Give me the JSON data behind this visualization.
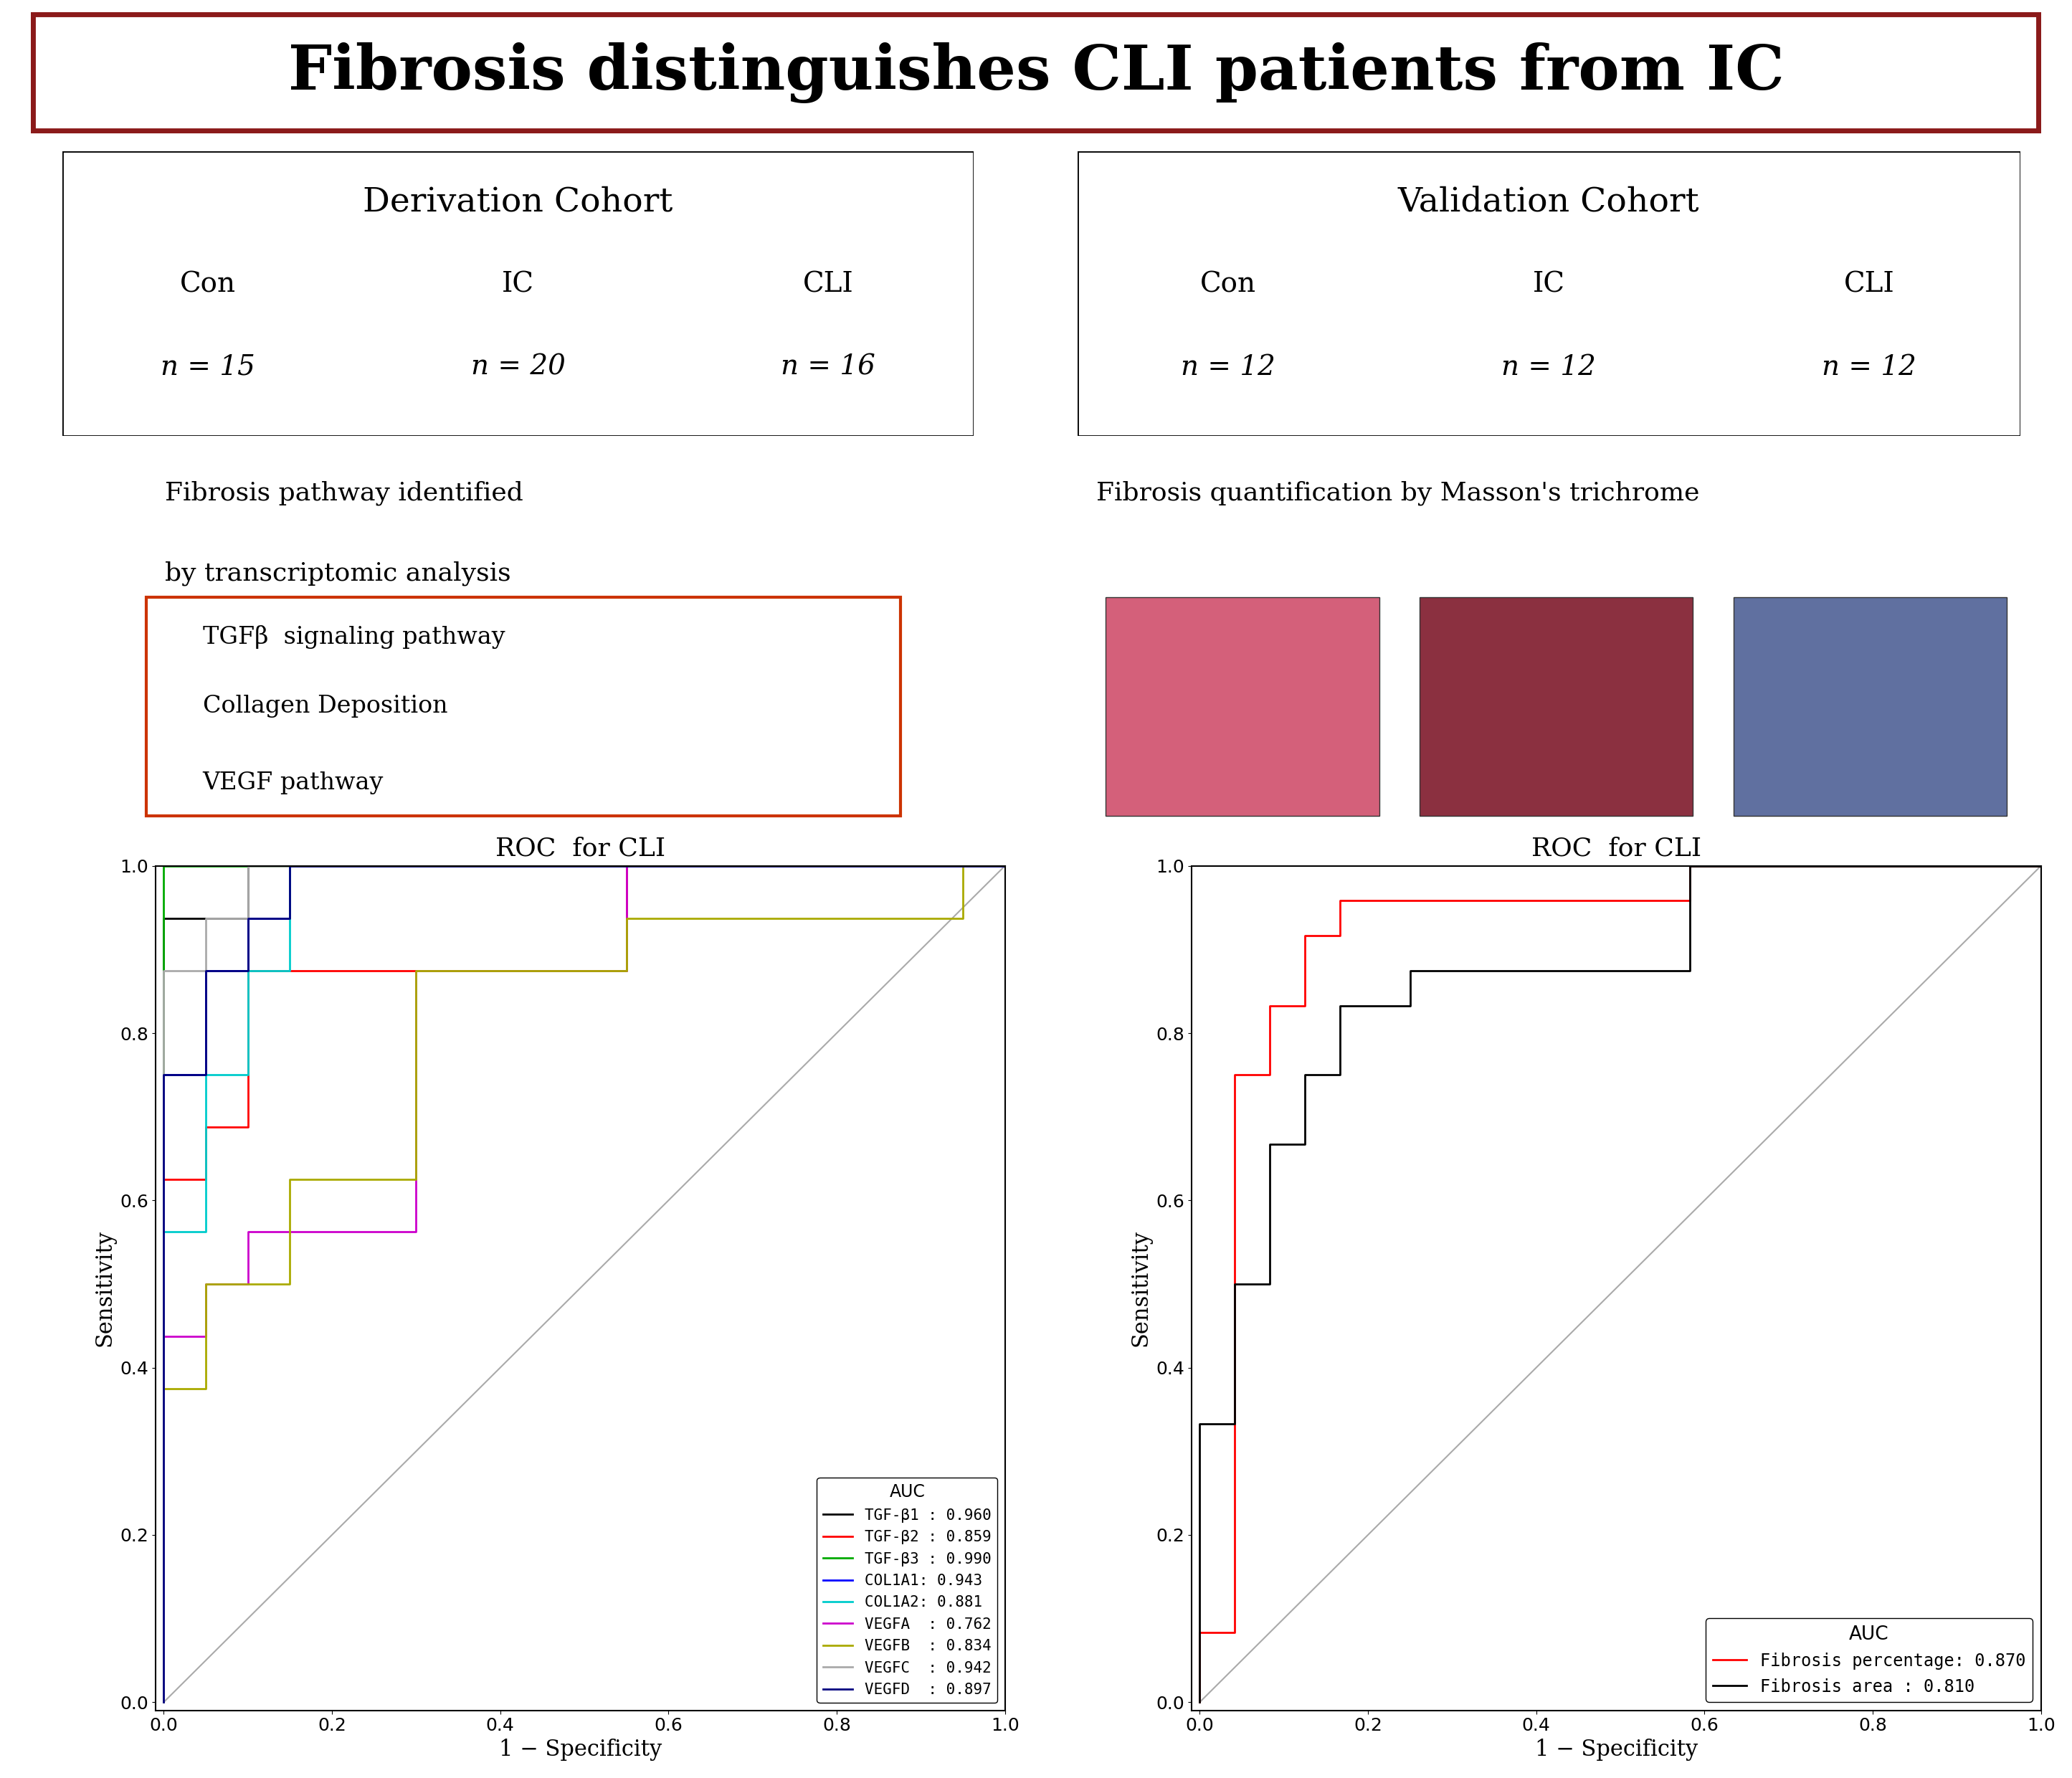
{
  "title": "Fibrosis distinguishes CLI patients from IC",
  "title_color": "#000000",
  "title_border_color": "#8B1A1A",
  "bg_color": "#ffffff",
  "deriv_cohort_title": "Derivation Cohort",
  "deriv_cohort_rows": [
    [
      "Con",
      "IC",
      "CLI"
    ],
    [
      "n = 15",
      "n = 20",
      "n = 16"
    ]
  ],
  "valid_cohort_title": "Validation Cohort",
  "valid_cohort_rows": [
    [
      "Con",
      "IC",
      "CLI"
    ],
    [
      "n = 12",
      "n = 12",
      "n = 12"
    ]
  ],
  "fibrosis_pathway_text1": "Fibrosis pathway identified",
  "fibrosis_pathway_text2": "by transcriptomic analysis",
  "fibrosis_pathway_items": [
    "TGFβ  signaling pathway",
    "Collagen Deposition",
    "VEGF pathway"
  ],
  "fibrosis_quant_text": "Fibrosis quantification by Masson's trichrome",
  "roc_left_title": "ROC  for CLI",
  "roc_right_title": "ROC  for CLI",
  "roc_left_curves": {
    "TGF-β1": {
      "color": "#000000",
      "auc": 0.96,
      "fpr": [
        0.0,
        0.0,
        0.0,
        0.05,
        0.05,
        0.1,
        0.1,
        0.15,
        0.15,
        0.35,
        0.35,
        0.55,
        0.55,
        1.0
      ],
      "tpr": [
        0.0,
        0.0,
        0.9375,
        0.9375,
        0.9375,
        0.9375,
        1.0,
        1.0,
        1.0,
        1.0,
        1.0,
        1.0,
        1.0,
        1.0
      ]
    },
    "TGF-β2": {
      "color": "#FF0000",
      "auc": 0.859,
      "fpr": [
        0.0,
        0.0,
        0.05,
        0.05,
        0.1,
        0.1,
        0.55,
        0.55,
        1.0
      ],
      "tpr": [
        0.0,
        0.625,
        0.625,
        0.6875,
        0.6875,
        0.875,
        0.875,
        1.0,
        1.0
      ]
    },
    "TGF-β3": {
      "color": "#00AA00",
      "auc": 0.99,
      "fpr": [
        0.0,
        0.0,
        0.05,
        0.05,
        0.5,
        0.5,
        1.0
      ],
      "tpr": [
        0.0,
        1.0,
        1.0,
        1.0,
        1.0,
        1.0,
        1.0
      ]
    },
    "COL1A1": {
      "color": "#0000FF",
      "auc": 0.943,
      "fpr": [
        0.0,
        0.0,
        0.05,
        0.05,
        0.1,
        0.1,
        0.15,
        0.15,
        0.5,
        0.5,
        1.0
      ],
      "tpr": [
        0.0,
        0.75,
        0.75,
        0.875,
        0.875,
        0.9375,
        0.9375,
        1.0,
        1.0,
        1.0,
        1.0
      ]
    },
    "COL1A2": {
      "color": "#00CCCC",
      "auc": 0.881,
      "fpr": [
        0.0,
        0.0,
        0.05,
        0.05,
        0.1,
        0.1,
        0.15,
        0.15,
        0.5,
        0.5,
        1.0
      ],
      "tpr": [
        0.0,
        0.5625,
        0.5625,
        0.75,
        0.75,
        0.875,
        0.875,
        1.0,
        1.0,
        1.0,
        1.0
      ]
    },
    "VEGFA": {
      "color": "#CC00CC",
      "auc": 0.762,
      "fpr": [
        0.0,
        0.0,
        0.05,
        0.05,
        0.1,
        0.1,
        0.3,
        0.3,
        0.55,
        0.55,
        1.0
      ],
      "tpr": [
        0.0,
        0.4375,
        0.4375,
        0.5,
        0.5,
        0.5625,
        0.5625,
        0.875,
        0.875,
        1.0,
        1.0
      ]
    },
    "VEGFB": {
      "color": "#AAAA00",
      "auc": 0.834,
      "fpr": [
        0.0,
        0.0,
        0.05,
        0.05,
        0.15,
        0.15,
        0.3,
        0.3,
        0.55,
        0.55,
        0.95,
        0.95,
        1.0
      ],
      "tpr": [
        0.0,
        0.375,
        0.375,
        0.5,
        0.5,
        0.625,
        0.625,
        0.875,
        0.875,
        0.9375,
        0.9375,
        1.0,
        1.0
      ]
    },
    "VEGFC": {
      "color": "#AAAAAA",
      "auc": 0.942,
      "fpr": [
        0.0,
        0.0,
        0.05,
        0.05,
        0.1,
        0.1,
        0.5,
        0.5,
        1.0
      ],
      "tpr": [
        0.0,
        0.875,
        0.875,
        0.9375,
        0.9375,
        1.0,
        1.0,
        1.0,
        1.0
      ]
    },
    "VEGFD": {
      "color": "#000080",
      "auc": 0.897,
      "fpr": [
        0.0,
        0.0,
        0.05,
        0.05,
        0.1,
        0.1,
        0.15,
        0.15,
        0.5,
        0.5,
        1.0
      ],
      "tpr": [
        0.0,
        0.75,
        0.75,
        0.875,
        0.875,
        0.9375,
        0.9375,
        1.0,
        1.0,
        1.0,
        1.0
      ]
    }
  },
  "roc_right_curves": {
    "Fibrosis percentage": {
      "color": "#FF0000",
      "auc": 0.87,
      "fpr": [
        0.0,
        0.0,
        0.04167,
        0.04167,
        0.0833,
        0.0833,
        0.125,
        0.125,
        0.1667,
        0.1667,
        0.208,
        0.208,
        0.25,
        0.25,
        0.333,
        0.333,
        0.5,
        0.5,
        0.583,
        0.583,
        1.0
      ],
      "tpr": [
        0.0,
        0.0833,
        0.0833,
        0.75,
        0.75,
        0.833,
        0.833,
        0.917,
        0.917,
        0.9583,
        0.9583,
        0.9583,
        0.9583,
        0.9583,
        0.9583,
        0.9583,
        0.9583,
        0.9583,
        0.9583,
        1.0,
        1.0
      ]
    },
    "Fibrosis area": {
      "color": "#000000",
      "auc": 0.81,
      "fpr": [
        0.0,
        0.0,
        0.04167,
        0.04167,
        0.0833,
        0.0833,
        0.125,
        0.125,
        0.1667,
        0.1667,
        0.25,
        0.25,
        0.333,
        0.333,
        0.5,
        0.5,
        0.583,
        0.583,
        1.0
      ],
      "tpr": [
        0.0,
        0.333,
        0.333,
        0.5,
        0.5,
        0.667,
        0.667,
        0.75,
        0.75,
        0.833,
        0.833,
        0.875,
        0.875,
        0.875,
        0.875,
        0.875,
        0.875,
        1.0,
        1.0
      ]
    }
  },
  "legend_left_labels": [
    "TGF-β1 : 0.960",
    "TGF-β2 : 0.859",
    "TGF-β3 : 0.990",
    "COL1A1: 0.943",
    "COL1A2: 0.881",
    "VEGFA  : 0.762",
    "VEGFB  : 0.834",
    "VEGFC  : 0.942",
    "VEGFD  : 0.897"
  ],
  "legend_right_labels": [
    "Fibrosis percentage: 0.870",
    "Fibrosis area : 0.810"
  ]
}
